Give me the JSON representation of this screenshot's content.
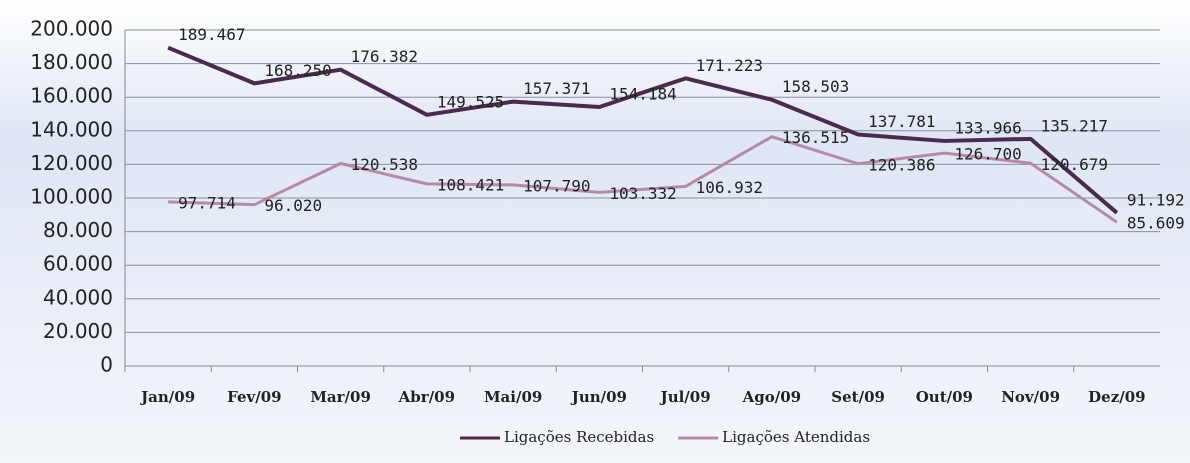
{
  "chart_data": {
    "type": "line",
    "categories": [
      "Jan/09",
      "Fev/09",
      "Mar/09",
      "Abr/09",
      "Mai/09",
      "Jun/09",
      "Jul/09",
      "Ago/09",
      "Set/09",
      "Out/09",
      "Nov/09",
      "Dez/09"
    ],
    "series": [
      {
        "name": "Ligações Recebidas",
        "color": "#4a2a4e",
        "values": [
          189467,
          168250,
          176382,
          149525,
          157371,
          154184,
          171223,
          158503,
          137781,
          133966,
          135217,
          91192
        ],
        "value_labels": [
          "189.467",
          "168.250",
          "176.382",
          "149.525",
          "157.371",
          "154.184",
          "171.223",
          "158.503",
          "137.781",
          "133.966",
          "135.217",
          "91.192"
        ]
      },
      {
        "name": "Ligações Atendidas",
        "color": "#b58aa8",
        "values": [
          97714,
          96020,
          120538,
          108421,
          107790,
          103332,
          106932,
          136515,
          120386,
          126700,
          120679,
          85609
        ],
        "value_labels": [
          "97.714",
          "96.020",
          "120.538",
          "108.421",
          "107.790",
          "103.332",
          "106.932",
          "136.515",
          "120.386",
          "126.700",
          "120.679",
          "85.609"
        ]
      }
    ],
    "ylim": [
      0,
      200000
    ],
    "yticks": [
      0,
      {
        "value": 20000,
        "label": "20.000"
      },
      {
        "value": 40000,
        "label": "40.000"
      },
      {
        "value": 60000,
        "label": "60.000"
      },
      {
        "value": 80000,
        "label": "80.000"
      },
      {
        "value": 100000,
        "label": "100.000"
      },
      {
        "value": 120000,
        "label": "120.000"
      },
      {
        "value": 140000,
        "label": "140.000"
      },
      {
        "value": 160000,
        "label": "160.000"
      },
      {
        "value": 180000,
        "label": "180.000"
      },
      {
        "value": 200000,
        "label": "200.000"
      }
    ],
    "grid": true,
    "legend": "bottom"
  }
}
